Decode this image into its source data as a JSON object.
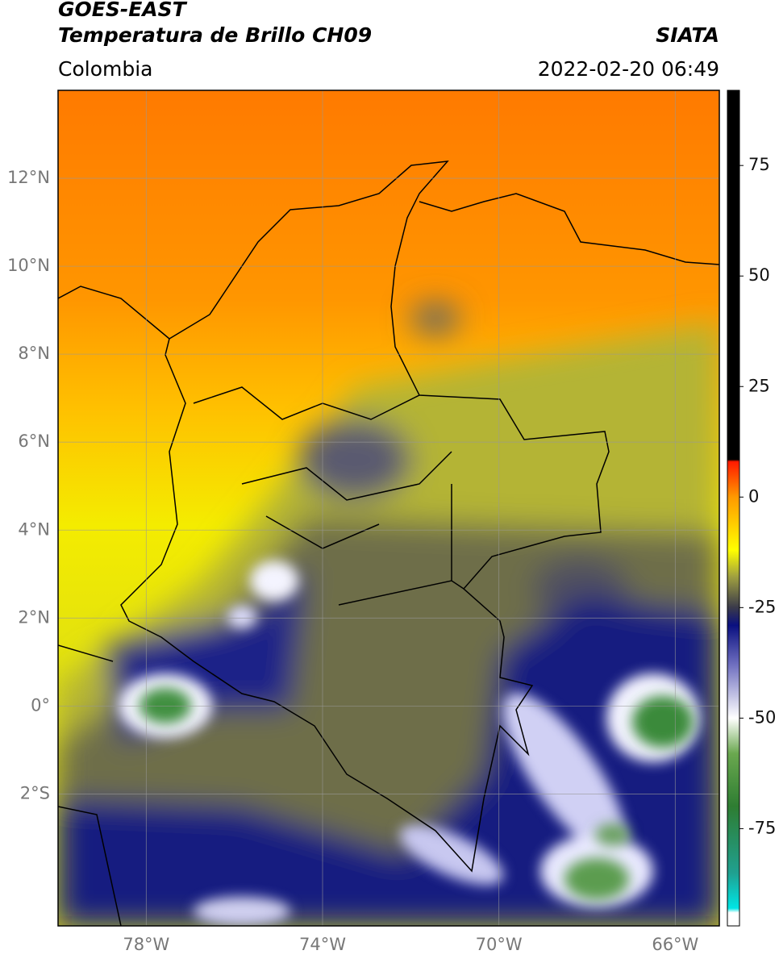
{
  "header": {
    "title": "GOES-EAST",
    "subtitle": "Temperatura de Brillo CH09",
    "region": "Colombia",
    "source": "SIATA",
    "datetime": "2022-02-20 06:49"
  },
  "map": {
    "xlim": [
      -80,
      -65
    ],
    "ylim": [
      -5,
      14
    ],
    "grid": true,
    "xticks": [
      {
        "value": -78,
        "label": "78°W"
      },
      {
        "value": -74,
        "label": "74°W"
      },
      {
        "value": -70,
        "label": "70°W"
      },
      {
        "value": -66,
        "label": "66°W"
      }
    ],
    "yticks": [
      {
        "value": 12,
        "label": "12°N"
      },
      {
        "value": 10,
        "label": "10°N"
      },
      {
        "value": 8,
        "label": "8°N"
      },
      {
        "value": 6,
        "label": "6°N"
      },
      {
        "value": 4,
        "label": "4°N"
      },
      {
        "value": 2,
        "label": "2°N"
      },
      {
        "value": 0,
        "label": "0°"
      },
      {
        "value": -2,
        "label": "2°S"
      }
    ]
  },
  "colorbar": {
    "lim": [
      -97,
      92
    ],
    "ticks": [
      75,
      50,
      25,
      0,
      -25,
      -50,
      -75
    ],
    "stops": [
      {
        "value": -97,
        "color": "#ffffff"
      },
      {
        "value": -94,
        "color": "#ffffff"
      },
      {
        "value": -93,
        "color": "#00e5e5"
      },
      {
        "value": -85,
        "color": "#20a090"
      },
      {
        "value": -70,
        "color": "#2e7d32"
      },
      {
        "value": -58,
        "color": "#6aa84f"
      },
      {
        "value": -50,
        "color": "#ffffff"
      },
      {
        "value": -38,
        "color": "#7070c0"
      },
      {
        "value": -29,
        "color": "#0a1080"
      },
      {
        "value": -25,
        "color": "#3a3a4a"
      },
      {
        "value": -18,
        "color": "#a0a040"
      },
      {
        "value": -12,
        "color": "#ffff00"
      },
      {
        "value": 0,
        "color": "#ff9900"
      },
      {
        "value": 8,
        "color": "#ff1a00"
      },
      {
        "value": 8.5,
        "color": "#000000"
      },
      {
        "value": 92,
        "color": "#000000"
      }
    ]
  }
}
